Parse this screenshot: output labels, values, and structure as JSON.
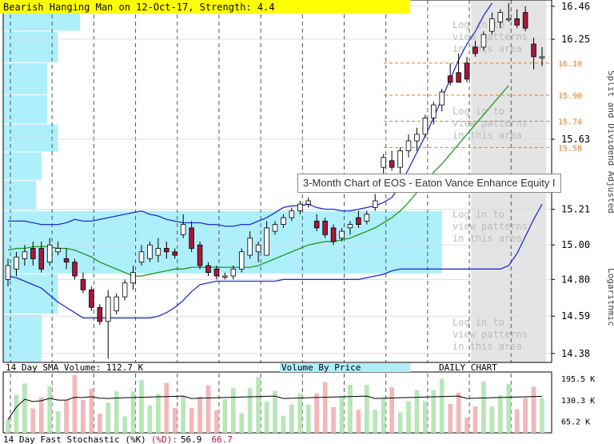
{
  "header": {
    "pattern_title": "Bearish Hanging Man on 12-Oct-17, Strength: 4.4",
    "right_axis_title": "Split and Dividend Adjusted",
    "right_axis_scale": "Logarithmic"
  },
  "tooltip": "3-Month Chart of EOS - Eaton Vance Enhance Equity I",
  "watermark": [
    "Log in to",
    "view patterns",
    "in this area"
  ],
  "labels": {
    "volume_sma": "14 Day SMA Volume: 112.7 K",
    "volume_by_price": "Volume By Price",
    "daily_chart": "DAILY CHART",
    "stoch_prefix": "14 Day Fast Stochastic (%K)",
    "stoch_d_label": "(%D):",
    "stoch_k_value": "56.9",
    "stoch_d_value": "66.7"
  },
  "colors": {
    "up": "#ffffff",
    "down": "#a8183c",
    "bollinger": "#1f2fd0",
    "sma": "#1c9a1c",
    "vbp": "#aeeffc",
    "pattern_bg": "#e4e4e4",
    "level_line": "#f07a1e",
    "vol_up": "#b8e6b8",
    "vol_down": "#f2b8b8",
    "title_bg": "#ffff00"
  },
  "chart_data": {
    "type": "candlestick",
    "scale": "log",
    "ylim": [
      14.33,
      16.5
    ],
    "y_ticks": [
      16.46,
      16.25,
      15.63,
      15.21,
      15.0,
      14.8,
      14.59,
      14.38
    ],
    "levels": [
      16.1,
      15.9,
      15.74,
      15.58
    ],
    "candles": [
      {
        "o": 14.8,
        "h": 14.92,
        "l": 14.76,
        "c": 14.88
      },
      {
        "o": 14.86,
        "h": 14.96,
        "l": 14.82,
        "c": 14.93
      },
      {
        "o": 14.92,
        "h": 15.0,
        "l": 14.88,
        "c": 14.96
      },
      {
        "o": 14.98,
        "h": 15.02,
        "l": 14.88,
        "c": 14.92
      },
      {
        "o": 14.98,
        "h": 15.02,
        "l": 14.84,
        "c": 14.86
      },
      {
        "o": 14.9,
        "h": 15.04,
        "l": 14.88,
        "c": 15.0
      },
      {
        "o": 14.96,
        "h": 15.02,
        "l": 14.94,
        "c": 14.98
      },
      {
        "o": 14.92,
        "h": 14.98,
        "l": 14.86,
        "c": 14.9
      },
      {
        "o": 14.9,
        "h": 14.92,
        "l": 14.8,
        "c": 14.82
      },
      {
        "o": 14.8,
        "h": 14.84,
        "l": 14.72,
        "c": 14.74
      },
      {
        "o": 14.74,
        "h": 14.76,
        "l": 14.62,
        "c": 14.64
      },
      {
        "o": 14.64,
        "h": 14.66,
        "l": 14.54,
        "c": 14.56
      },
      {
        "o": 14.56,
        "h": 14.74,
        "l": 14.35,
        "c": 14.7
      },
      {
        "o": 14.62,
        "h": 14.72,
        "l": 14.6,
        "c": 14.7
      },
      {
        "o": 14.7,
        "h": 14.8,
        "l": 14.68,
        "c": 14.78
      },
      {
        "o": 14.78,
        "h": 14.88,
        "l": 14.74,
        "c": 14.84
      },
      {
        "o": 14.9,
        "h": 15.0,
        "l": 14.88,
        "c": 14.96
      },
      {
        "o": 14.92,
        "h": 15.02,
        "l": 14.9,
        "c": 15.0
      },
      {
        "o": 14.94,
        "h": 15.04,
        "l": 14.9,
        "c": 14.98
      },
      {
        "o": 14.98,
        "h": 15.02,
        "l": 14.92,
        "c": 14.96
      },
      {
        "o": 14.96,
        "h": 14.98,
        "l": 14.92,
        "c": 14.94
      },
      {
        "o": 15.06,
        "h": 15.18,
        "l": 15.04,
        "c": 15.12
      },
      {
        "o": 15.1,
        "h": 15.14,
        "l": 14.96,
        "c": 14.98
      },
      {
        "o": 15.0,
        "h": 15.02,
        "l": 14.86,
        "c": 14.88
      },
      {
        "o": 14.88,
        "h": 14.9,
        "l": 14.82,
        "c": 14.84
      },
      {
        "o": 14.86,
        "h": 14.88,
        "l": 14.8,
        "c": 14.82
      },
      {
        "o": 14.82,
        "h": 14.84,
        "l": 14.8,
        "c": 14.82
      },
      {
        "o": 14.82,
        "h": 14.88,
        "l": 14.8,
        "c": 14.86
      },
      {
        "o": 14.86,
        "h": 14.98,
        "l": 14.84,
        "c": 14.96
      },
      {
        "o": 14.94,
        "h": 15.08,
        "l": 14.92,
        "c": 15.04
      },
      {
        "o": 14.96,
        "h": 15.02,
        "l": 14.9,
        "c": 15.0
      },
      {
        "o": 14.94,
        "h": 15.14,
        "l": 14.94,
        "c": 15.1
      },
      {
        "o": 15.08,
        "h": 15.14,
        "l": 15.06,
        "c": 15.12
      },
      {
        "o": 15.12,
        "h": 15.18,
        "l": 15.1,
        "c": 15.16
      },
      {
        "o": 15.16,
        "h": 15.22,
        "l": 15.14,
        "c": 15.2
      },
      {
        "o": 15.2,
        "h": 15.26,
        "l": 15.18,
        "c": 15.24
      },
      {
        "o": 15.24,
        "h": 15.28,
        "l": 15.22,
        "c": 15.26
      },
      {
        "o": 15.14,
        "h": 15.18,
        "l": 15.08,
        "c": 15.1
      },
      {
        "o": 15.14,
        "h": 15.16,
        "l": 15.04,
        "c": 15.06
      },
      {
        "o": 15.1,
        "h": 15.12,
        "l": 15.0,
        "c": 15.02
      },
      {
        "o": 15.04,
        "h": 15.1,
        "l": 15.02,
        "c": 15.08
      },
      {
        "o": 15.1,
        "h": 15.14,
        "l": 15.06,
        "c": 15.12
      },
      {
        "o": 15.16,
        "h": 15.2,
        "l": 15.1,
        "c": 15.12
      },
      {
        "o": 15.14,
        "h": 15.2,
        "l": 15.12,
        "c": 15.18
      },
      {
        "o": 15.22,
        "h": 15.3,
        "l": 15.2,
        "c": 15.26
      },
      {
        "o": 15.46,
        "h": 15.54,
        "l": 15.42,
        "c": 15.52
      },
      {
        "o": 15.5,
        "h": 15.56,
        "l": 15.44,
        "c": 15.46
      },
      {
        "o": 15.46,
        "h": 15.58,
        "l": 15.42,
        "c": 15.56
      },
      {
        "o": 15.56,
        "h": 15.66,
        "l": 15.52,
        "c": 15.62
      },
      {
        "o": 15.62,
        "h": 15.7,
        "l": 15.56,
        "c": 15.66
      },
      {
        "o": 15.66,
        "h": 15.78,
        "l": 15.64,
        "c": 15.76
      },
      {
        "o": 15.76,
        "h": 15.86,
        "l": 15.72,
        "c": 15.84
      },
      {
        "o": 15.84,
        "h": 15.94,
        "l": 15.8,
        "c": 15.92
      },
      {
        "o": 16.02,
        "h": 16.1,
        "l": 15.96,
        "c": 15.98
      },
      {
        "o": 16.04,
        "h": 16.16,
        "l": 15.98,
        "c": 15.98
      },
      {
        "o": 16.1,
        "h": 16.14,
        "l": 15.98,
        "c": 16.0
      },
      {
        "o": 16.2,
        "h": 16.24,
        "l": 16.14,
        "c": 16.16
      },
      {
        "o": 16.2,
        "h": 16.3,
        "l": 16.18,
        "c": 16.28
      },
      {
        "o": 16.3,
        "h": 16.42,
        "l": 16.28,
        "c": 16.38
      },
      {
        "o": 16.36,
        "h": 16.44,
        "l": 16.32,
        "c": 16.42
      },
      {
        "o": 16.38,
        "h": 16.48,
        "l": 16.36,
        "c": 16.38
      },
      {
        "o": 16.38,
        "h": 16.44,
        "l": 16.32,
        "c": 16.34
      },
      {
        "o": 16.42,
        "h": 16.46,
        "l": 16.3,
        "c": 16.32
      },
      {
        "o": 16.22,
        "h": 16.26,
        "l": 16.06,
        "c": 16.14
      },
      {
        "o": 16.14,
        "h": 16.2,
        "l": 16.08,
        "c": 16.14
      }
    ],
    "bollinger_upper": [
      15.14,
      15.14,
      15.14,
      15.13,
      15.12,
      15.12,
      15.12,
      15.13,
      15.15,
      15.14,
      15.14,
      15.15,
      15.16,
      15.17,
      15.18,
      15.19,
      15.2,
      15.18,
      15.17,
      15.15,
      15.14,
      15.13,
      15.13,
      15.13,
      15.12,
      15.12,
      15.11,
      15.11,
      15.12,
      15.12,
      15.14,
      15.16,
      15.19,
      15.22,
      15.23,
      15.23,
      15.24,
      15.22,
      15.21,
      15.21,
      15.2,
      15.2,
      15.21,
      15.22,
      15.23,
      15.25,
      15.28,
      15.35,
      15.45,
      15.55,
      15.65,
      15.76,
      15.88,
      16.0,
      16.12,
      16.22,
      16.3,
      16.4,
      16.48
    ],
    "bollinger_lower": [
      14.82,
      14.81,
      14.79,
      14.77,
      14.75,
      14.71,
      14.67,
      14.64,
      14.61,
      14.58,
      14.58,
      14.58,
      14.58,
      14.58,
      14.58,
      14.58,
      14.58,
      14.58,
      14.59,
      14.61,
      14.64,
      14.68,
      14.73,
      14.77,
      14.78,
      14.79,
      14.79,
      14.79,
      14.79,
      14.79,
      14.79,
      14.79,
      14.79,
      14.8,
      14.8,
      14.8,
      14.8,
      14.8,
      14.8,
      14.8,
      14.8,
      14.8,
      14.8,
      14.81,
      14.82,
      14.83,
      14.85,
      14.86,
      14.86,
      14.86,
      14.86,
      14.86,
      14.86,
      14.86,
      14.86,
      14.86,
      14.86,
      14.86,
      14.86,
      14.86,
      14.88,
      14.95,
      15.05,
      15.15,
      15.24
    ],
    "sma": [
      14.97,
      14.98,
      14.98,
      14.99,
      14.99,
      14.99,
      14.98,
      14.98,
      14.97,
      14.95,
      14.93,
      14.9,
      14.88,
      14.86,
      14.84,
      14.82,
      14.82,
      14.83,
      14.84,
      14.85,
      14.86,
      14.86,
      14.87,
      14.87,
      14.87,
      14.87,
      14.87,
      14.87,
      14.87,
      14.87,
      14.88,
      14.9,
      14.92,
      14.94,
      14.96,
      14.98,
      15.0,
      15.01,
      15.02,
      15.02,
      15.03,
      15.04,
      15.06,
      15.08,
      15.1,
      15.13,
      15.16,
      15.2,
      15.25,
      15.31,
      15.37,
      15.43,
      15.48,
      15.54,
      15.6,
      15.66,
      15.72,
      15.78,
      15.84,
      15.9,
      15.96
    ],
    "pattern_zone": {
      "start_index": 56,
      "end_index": 64
    },
    "volume_by_price": [
      {
        "low": 16.3,
        "high": 16.5,
        "fraction": 0.14
      },
      {
        "low": 16.1,
        "high": 16.3,
        "fraction": 0.1
      },
      {
        "low": 15.9,
        "high": 16.1,
        "fraction": 0.08
      },
      {
        "low": 15.72,
        "high": 15.9,
        "fraction": 0.08
      },
      {
        "low": 15.55,
        "high": 15.72,
        "fraction": 0.1
      },
      {
        "low": 15.38,
        "high": 15.55,
        "fraction": 0.07
      },
      {
        "low": 15.2,
        "high": 15.38,
        "fraction": 0.06
      },
      {
        "low": 14.83,
        "high": 15.2,
        "fraction": 0.8
      },
      {
        "low": 14.6,
        "high": 14.83,
        "fraction": 0.1
      },
      {
        "low": 14.33,
        "high": 14.6,
        "fraction": 0.07
      }
    ],
    "volume_ticks": [
      195.5,
      130.3,
      65.2
    ],
    "volume_tick_labels": [
      "195.5 K",
      "130.3 K",
      "65.2 K"
    ],
    "volume_ylim": [
      30,
      210
    ]
  }
}
